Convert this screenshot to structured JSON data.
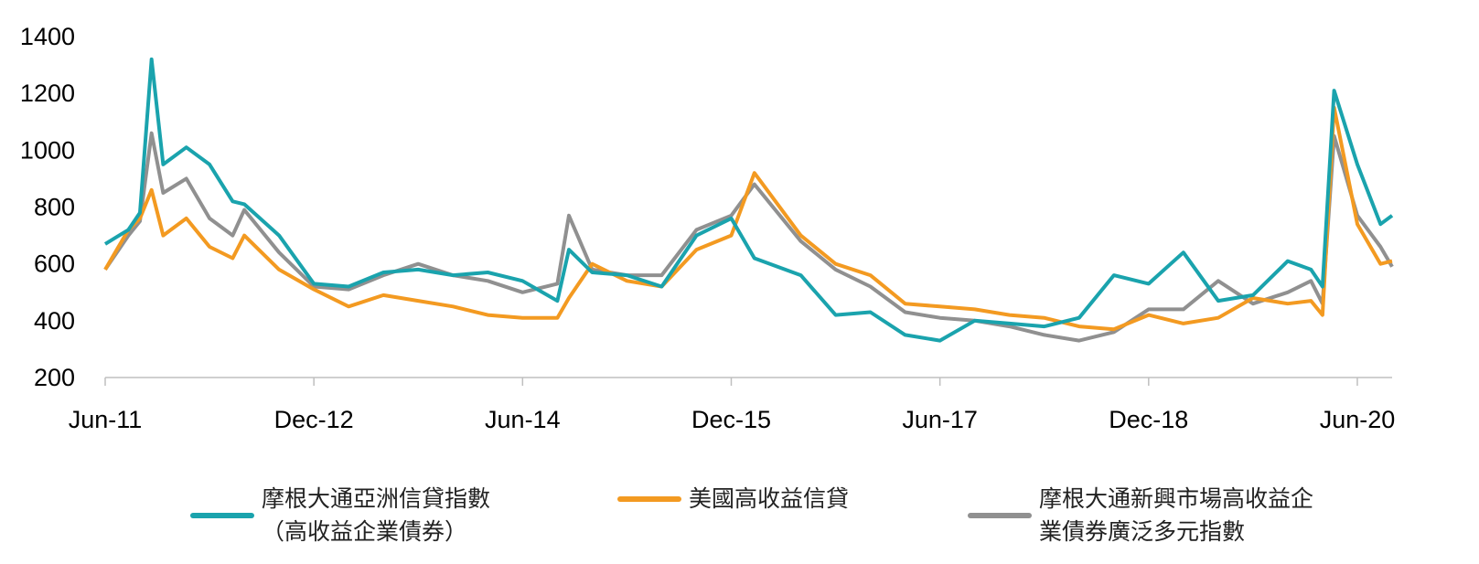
{
  "chart_data": {
    "type": "line",
    "title": "",
    "xlabel": "",
    "ylabel": "",
    "ylim": [
      200,
      1400
    ],
    "yticks": [
      200,
      400,
      600,
      800,
      1000,
      1200,
      1400
    ],
    "xticks": [
      "Jun-11",
      "Dec-12",
      "Jun-14",
      "Dec-15",
      "Jun-17",
      "Dec-18",
      "Jun-20"
    ],
    "grid": false,
    "legend_position": "bottom",
    "x": [
      "Jun-11",
      "Aug-11",
      "Sep-11",
      "Oct-11",
      "Nov-11",
      "Jan-12",
      "Mar-12",
      "May-12",
      "Jun-12",
      "Sep-12",
      "Dec-12",
      "Mar-13",
      "Jun-13",
      "Sep-13",
      "Dec-13",
      "Mar-14",
      "Jun-14",
      "Sep-14",
      "Oct-14",
      "Dec-14",
      "Mar-15",
      "Jun-15",
      "Sep-15",
      "Dec-15",
      "Feb-16",
      "Jun-16",
      "Sep-16",
      "Dec-16",
      "Mar-17",
      "Jun-17",
      "Sep-17",
      "Dec-17",
      "Mar-18",
      "Jun-18",
      "Sep-18",
      "Dec-18",
      "Mar-19",
      "Jun-19",
      "Sep-19",
      "Dec-19",
      "Feb-20",
      "Mar-20",
      "Apr-20",
      "Jun-20",
      "Aug-20",
      "Sep-20"
    ],
    "series": [
      {
        "name": "摩根大通亞洲信貸指數\n（高收益企業債券）",
        "color": "#1aa3ad",
        "values": [
          670,
          720,
          780,
          1320,
          950,
          1010,
          950,
          820,
          810,
          700,
          530,
          520,
          570,
          580,
          560,
          570,
          540,
          470,
          650,
          570,
          560,
          520,
          700,
          760,
          620,
          560,
          420,
          430,
          350,
          330,
          400,
          390,
          380,
          410,
          560,
          530,
          640,
          470,
          490,
          610,
          580,
          520,
          1210,
          950,
          740,
          770
        ]
      },
      {
        "name": "美國高收益信貸",
        "color": "#f39a21",
        "values": [
          580,
          720,
          760,
          860,
          700,
          760,
          660,
          620,
          700,
          580,
          510,
          450,
          490,
          470,
          450,
          420,
          410,
          410,
          480,
          600,
          540,
          520,
          650,
          700,
          920,
          700,
          600,
          560,
          460,
          450,
          440,
          420,
          410,
          380,
          370,
          420,
          390,
          410,
          480,
          460,
          470,
          420,
          1150,
          740,
          600,
          610
        ]
      },
      {
        "name": "摩根大通新興市場高收益企\n業債券廣泛多元指數",
        "color": "#909090",
        "values": [
          580,
          700,
          750,
          1060,
          850,
          900,
          760,
          700,
          790,
          640,
          520,
          510,
          560,
          600,
          560,
          540,
          500,
          530,
          770,
          580,
          560,
          560,
          720,
          770,
          880,
          680,
          580,
          520,
          430,
          410,
          400,
          380,
          350,
          330,
          360,
          440,
          440,
          540,
          460,
          500,
          540,
          460,
          1050,
          770,
          660,
          590
        ]
      }
    ]
  }
}
